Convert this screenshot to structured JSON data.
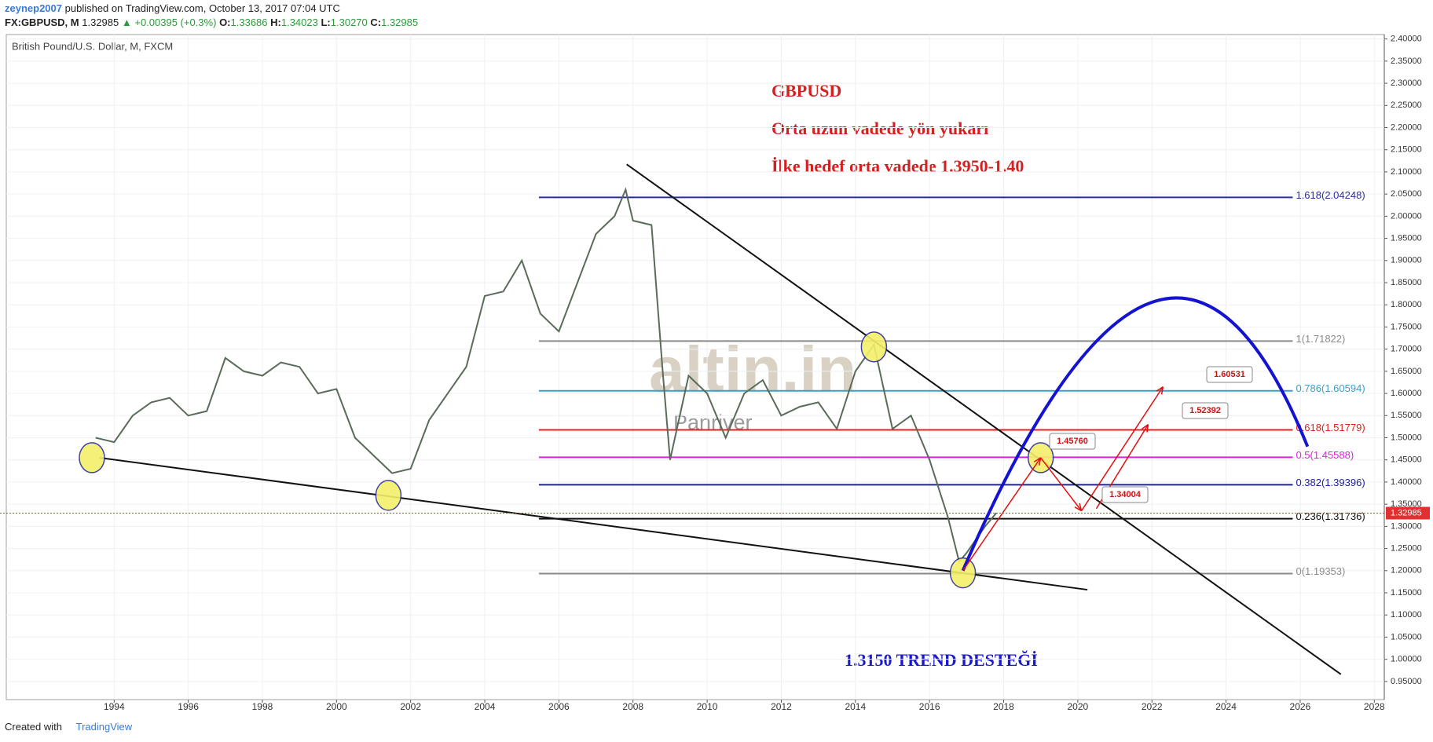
{
  "header": {
    "author": "zeynep2007",
    "published": "published on TradingView.com, October 13, 2017 07:04 UTC",
    "symbol": "FX:GBPUSD, M",
    "last": "1.32985",
    "change": "▲ +0.00395 (+0.3%)",
    "ohlc": [
      {
        "label": "O:",
        "value": "1.33686"
      },
      {
        "label": "H:",
        "value": "1.34023"
      },
      {
        "label": "L:",
        "value": "1.30270"
      },
      {
        "label": "C:",
        "value": "1.32985"
      }
    ]
  },
  "footer": {
    "created": "Created with",
    "brand": "TradingView"
  },
  "chart_data": {
    "type": "line",
    "title": "British Pound/U.S. Dollar, M, FXCM",
    "color": "#5a6b5a",
    "annotations": [
      "GBPUSD",
      "Orta uzun vadede yön yukarı",
      "İlke hedef orta vadede 1.3950-1.40",
      "1.3150 TREND DESTEĞİ"
    ],
    "watermark": [
      "altin.in",
      "Panriver"
    ],
    "x": [
      1993.5,
      1994,
      1994.5,
      1995,
      1995.5,
      1996,
      1996.5,
      1997,
      1997.5,
      1998,
      1998.5,
      1999,
      1999.5,
      2000,
      2000.5,
      2001,
      2001.5,
      2002,
      2002.5,
      2003,
      2003.5,
      2004,
      2004.5,
      2005,
      2005.5,
      2006,
      2006.5,
      2007,
      2007.5,
      2007.8,
      2008,
      2008.5,
      2008.8,
      2009,
      2009.5,
      2010,
      2010.5,
      2011,
      2011.5,
      2012,
      2012.5,
      2013,
      2013.5,
      2014,
      2014.5,
      2015,
      2015.5,
      2016,
      2016.5,
      2016.8,
      2017,
      2017.5,
      2017.8
    ],
    "values": [
      1.5,
      1.49,
      1.55,
      1.58,
      1.59,
      1.55,
      1.56,
      1.68,
      1.65,
      1.64,
      1.67,
      1.66,
      1.6,
      1.61,
      1.5,
      1.46,
      1.42,
      1.43,
      1.54,
      1.6,
      1.66,
      1.82,
      1.83,
      1.9,
      1.78,
      1.74,
      1.85,
      1.96,
      2.0,
      2.06,
      1.99,
      1.98,
      1.65,
      1.45,
      1.64,
      1.6,
      1.5,
      1.6,
      1.63,
      1.55,
      1.57,
      1.58,
      1.52,
      1.65,
      1.71,
      1.52,
      1.55,
      1.45,
      1.32,
      1.22,
      1.24,
      1.3,
      1.33
    ],
    "xlim": [
      1991.09,
      2028.27
    ],
    "ylim": [
      0.909,
      2.41
    ],
    "xticks": [
      1994,
      1996,
      1998,
      2000,
      2002,
      2004,
      2006,
      2008,
      2010,
      2012,
      2014,
      2016,
      2018,
      2020,
      2022,
      2024,
      2026,
      2028
    ],
    "yticks": [
      {
        "value": 0.95,
        "label": "0.95000"
      },
      {
        "value": 1.0,
        "label": "1.00000"
      },
      {
        "value": 1.05,
        "label": "1.05000"
      },
      {
        "value": 1.1,
        "label": "1.10000"
      },
      {
        "value": 1.15,
        "label": "1.15000"
      },
      {
        "value": 1.2,
        "label": "1.20000"
      },
      {
        "value": 1.25,
        "label": "1.25000"
      },
      {
        "value": 1.3,
        "label": "1.30000"
      },
      {
        "value": 1.35,
        "label": "1.35000"
      },
      {
        "value": 1.4,
        "label": "1.40000"
      },
      {
        "value": 1.45,
        "label": "1.45000"
      },
      {
        "value": 1.5,
        "label": "1.50000"
      },
      {
        "value": 1.55,
        "label": "1.55000"
      },
      {
        "value": 1.6,
        "label": "1.60000"
      },
      {
        "value": 1.65,
        "label": "1.65000"
      },
      {
        "value": 1.7,
        "label": "1.70000"
      },
      {
        "value": 1.75,
        "label": "1.75000"
      },
      {
        "value": 1.8,
        "label": "1.80000"
      },
      {
        "value": 1.85,
        "label": "1.85000"
      },
      {
        "value": 1.9,
        "label": "1.90000"
      },
      {
        "value": 1.95,
        "label": "1.95000"
      },
      {
        "value": 2.0,
        "label": "2.00000"
      },
      {
        "value": 2.05,
        "label": "2.05000"
      },
      {
        "value": 2.1,
        "label": "2.10000"
      },
      {
        "value": 2.15,
        "label": "2.15000"
      },
      {
        "value": 2.2,
        "label": "2.20000"
      },
      {
        "value": 2.25,
        "label": "2.25000"
      },
      {
        "value": 2.3,
        "label": "2.30000"
      },
      {
        "value": 2.35,
        "label": "2.35000"
      },
      {
        "value": 2.4,
        "label": "2.40000"
      }
    ],
    "last_price": {
      "value": 1.32985,
      "label": "1.32985"
    },
    "fib_levels": [
      {
        "value": 2.04248,
        "label": "1.618(2.04248)",
        "color": "#2a2ea0"
      },
      {
        "value": 1.71822,
        "label": "1(1.71822)",
        "color": "#8a8a8a"
      },
      {
        "value": 1.60594,
        "label": "0.786(1.60594)",
        "color": "#3a9fc8"
      },
      {
        "value": 1.51779,
        "label": "0.618(1.51779)",
        "color": "#e02020"
      },
      {
        "value": 1.45588,
        "label": "0.5(1.45588)",
        "color": "#e020e0"
      },
      {
        "value": 1.39396,
        "label": "0.382(1.39396)",
        "color": "#2020a0"
      },
      {
        "value": 1.31736,
        "label": "0.236(1.31736)",
        "color": "#111111"
      },
      {
        "value": 1.19353,
        "label": "0(1.19353)",
        "color": "#8a8a8a"
      }
    ],
    "callouts": [
      {
        "value": 1.4576,
        "label": "1.45760"
      },
      {
        "value": 1.34004,
        "label": "1.34004"
      },
      {
        "value": 1.60531,
        "label": "1.60531"
      },
      {
        "value": 1.52392,
        "label": "1.52392"
      }
    ]
  }
}
